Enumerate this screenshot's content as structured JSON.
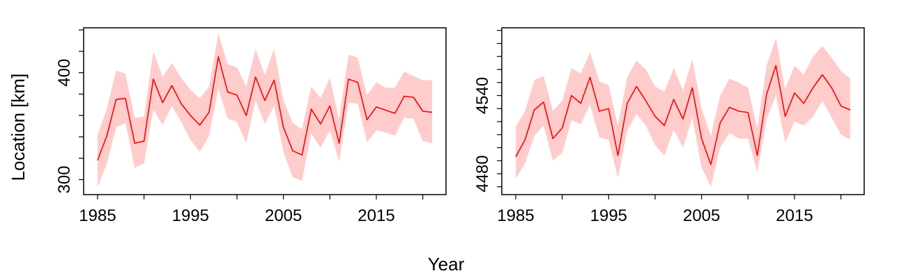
{
  "figure": {
    "xlabel": "Year",
    "ylabel": "Location [km]"
  },
  "chart_data": [
    {
      "type": "line",
      "x": [
        1985,
        1986,
        1987,
        1988,
        1989,
        1990,
        1991,
        1992,
        1993,
        1994,
        1995,
        1996,
        1997,
        1998,
        1999,
        2000,
        2001,
        2002,
        2003,
        2004,
        2005,
        2006,
        2007,
        2008,
        2009,
        2010,
        2011,
        2012,
        2013,
        2014,
        2015,
        2016,
        2017,
        2018,
        2019,
        2020,
        2021
      ],
      "series": [
        {
          "values": [
            318,
            341,
            375,
            376,
            334,
            336,
            394,
            372,
            388,
            371,
            360,
            351,
            363,
            415,
            382,
            379,
            360,
            396,
            374,
            393,
            349,
            327,
            323,
            366,
            352,
            369,
            334,
            394,
            391,
            356,
            368,
            365,
            362,
            378,
            377,
            364,
            363
          ],
          "lower": [
            293,
            315,
            349,
            353,
            311,
            315,
            366,
            351,
            369,
            354,
            337,
            326,
            341,
            385,
            357,
            354,
            334,
            374,
            352,
            369,
            326,
            302,
            299,
            343,
            330,
            346,
            317,
            372,
            371,
            335,
            346,
            344,
            341,
            358,
            357,
            336,
            334
          ],
          "upper": [
            342,
            366,
            402,
            399,
            358,
            359,
            420,
            396,
            409,
            395,
            384,
            376,
            387,
            437,
            408,
            405,
            387,
            422,
            398,
            422,
            374,
            353,
            347,
            387,
            376,
            395,
            356,
            417,
            414,
            379,
            391,
            386,
            386,
            401,
            397,
            393,
            393
          ],
          "color": "#FF0000",
          "band_color": "#FFCCCC"
        }
      ],
      "xticks": [
        1985,
        1995,
        2005,
        2015
      ],
      "xtick_labels": [
        "1985",
        "1995",
        "2005",
        "2015"
      ],
      "xlim": [
        1983.5,
        2022.5
      ],
      "yticks": [
        300,
        400
      ],
      "ytick_labels": [
        "300",
        "400"
      ],
      "ylim": [
        286,
        442
      ],
      "grid": false
    },
    {
      "type": "line",
      "x": [
        1985,
        1986,
        1987,
        1988,
        1989,
        1990,
        1991,
        1992,
        1993,
        1994,
        1995,
        1996,
        1997,
        1998,
        1999,
        2000,
        2001,
        2002,
        2003,
        2004,
        2005,
        2006,
        2007,
        2008,
        2009,
        2010,
        2011,
        2012,
        2013,
        2014,
        2015,
        2016,
        2017,
        2018,
        2019,
        2020,
        2021
      ],
      "series": [
        {
          "values": [
            4493,
            4506,
            4529,
            4535,
            4507,
            4515,
            4540,
            4534,
            4554,
            4528,
            4530,
            4494,
            4534,
            4547,
            4536,
            4524,
            4517,
            4537,
            4522,
            4546,
            4507,
            4487,
            4519,
            4531,
            4528,
            4527,
            4494,
            4541,
            4563,
            4524,
            4542,
            4534,
            4546,
            4556,
            4546,
            4532,
            4529
          ],
          "lower": [
            4476,
            4488,
            4509,
            4517,
            4490,
            4496,
            4521,
            4518,
            4533,
            4508,
            4506,
            4477,
            4513,
            4526,
            4517,
            4502,
            4494,
            4514,
            4500,
            4523,
            4485,
            4470,
            4500,
            4511,
            4507,
            4507,
            4481,
            4522,
            4540,
            4504,
            4520,
            4517,
            4524,
            4536,
            4523,
            4510,
            4506
          ],
          "upper": [
            4516,
            4528,
            4552,
            4555,
            4528,
            4536,
            4561,
            4557,
            4573,
            4551,
            4548,
            4517,
            4554,
            4567,
            4560,
            4547,
            4543,
            4561,
            4544,
            4568,
            4530,
            4509,
            4540,
            4553,
            4550,
            4546,
            4515,
            4563,
            4584,
            4545,
            4563,
            4556,
            4570,
            4578,
            4569,
            4559,
            4553
          ],
          "color": "#FF0000",
          "band_color": "#FFCCCC"
        }
      ],
      "xticks": [
        1985,
        1995,
        2005,
        2015
      ],
      "xtick_labels": [
        "1985",
        "1995",
        "2005",
        "2015"
      ],
      "xlim": [
        1983.5,
        2022.5
      ],
      "yticks": [
        4480,
        4540
      ],
      "ytick_labels": [
        "4480",
        "4540"
      ],
      "ylim": [
        4464,
        4592
      ],
      "grid": false
    }
  ]
}
